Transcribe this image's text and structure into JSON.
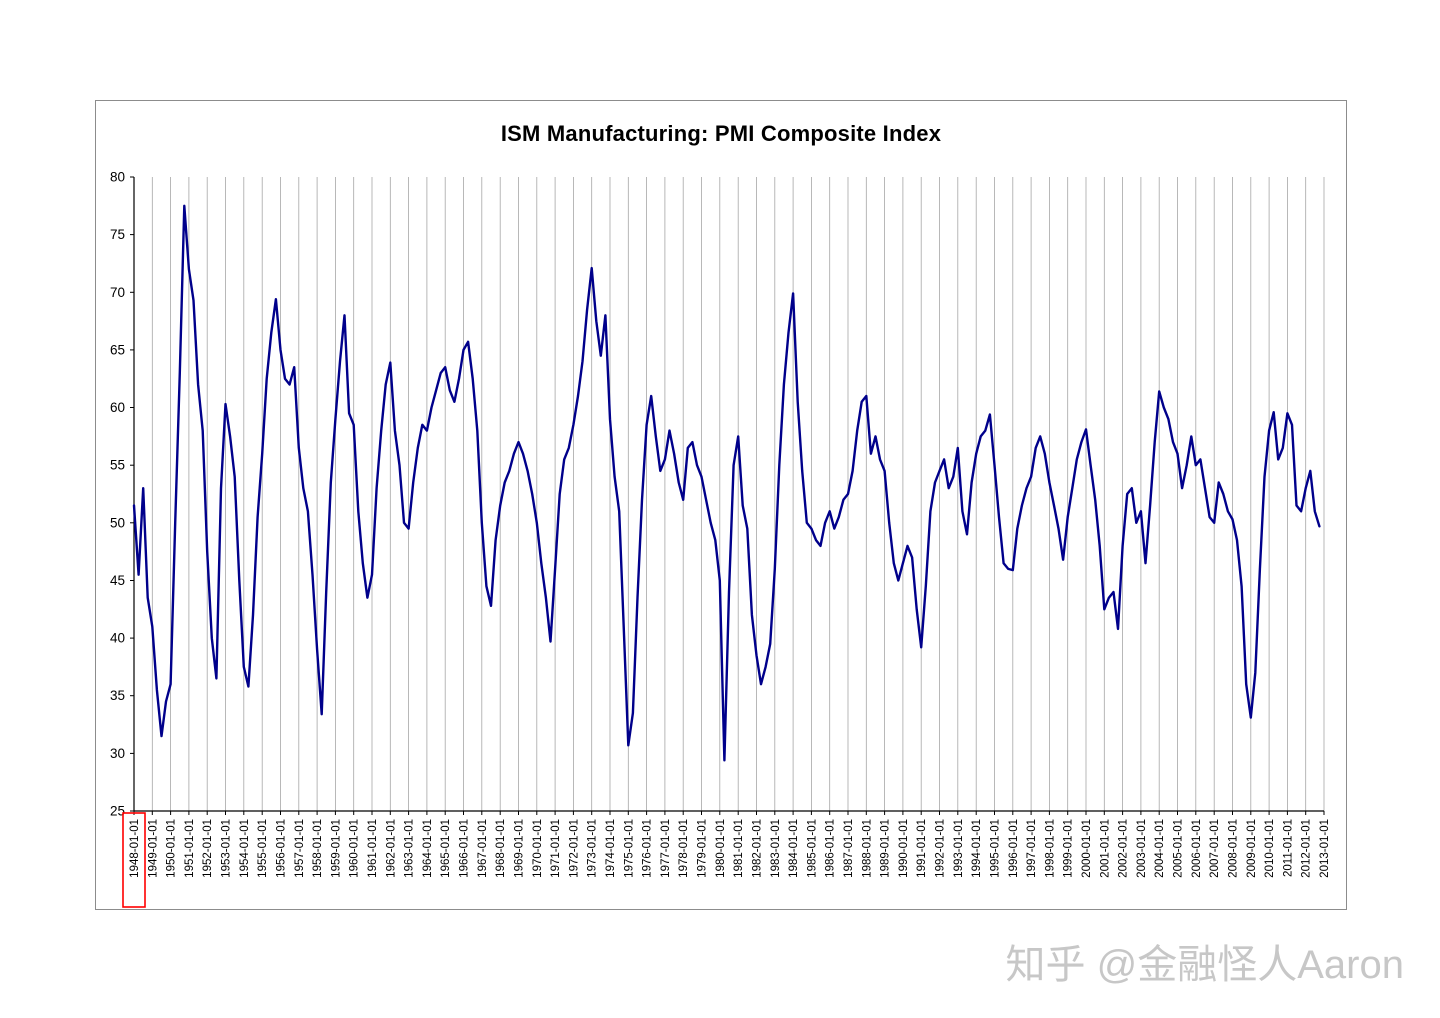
{
  "watermark": {
    "text": "知乎 @金融怪人Aaron"
  },
  "chart_data": {
    "type": "line",
    "title": "ISM Manufacturing: PMI Composite Index",
    "xlabel": "",
    "ylabel": "",
    "ylim": [
      25,
      80
    ],
    "ytick_interval": 5,
    "y_tick_labels": [
      25,
      30,
      35,
      40,
      45,
      50,
      55,
      60,
      65,
      70,
      75,
      80
    ],
    "grid": "vertical-yearly",
    "legend_position": "none",
    "x_start_year": 1948,
    "points_per_year": 4,
    "highlighted_x_label": "1948-01-01",
    "highlight_color": "#FF0000",
    "x_tick_labels": [
      "1948-01-01",
      "1949-01-01",
      "1950-01-01",
      "1951-01-01",
      "1952-01-01",
      "1953-01-01",
      "1954-01-01",
      "1955-01-01",
      "1956-01-01",
      "1957-01-01",
      "1958-01-01",
      "1959-01-01",
      "1960-01-01",
      "1961-01-01",
      "1962-01-01",
      "1963-01-01",
      "1964-01-01",
      "1965-01-01",
      "1966-01-01",
      "1967-01-01",
      "1968-01-01",
      "1969-01-01",
      "1970-01-01",
      "1971-01-01",
      "1972-01-01",
      "1973-01-01",
      "1974-01-01",
      "1975-01-01",
      "1976-01-01",
      "1977-01-01",
      "1978-01-01",
      "1979-01-01",
      "1980-01-01",
      "1981-01-01",
      "1982-01-01",
      "1983-01-01",
      "1984-01-01",
      "1985-01-01",
      "1986-01-01",
      "1987-01-01",
      "1988-01-01",
      "1989-01-01",
      "1990-01-01",
      "1991-01-01",
      "1992-01-01",
      "1993-01-01",
      "1994-01-01",
      "1995-01-01",
      "1996-01-01",
      "1997-01-01",
      "1998-01-01",
      "1999-01-01",
      "2000-01-01",
      "2001-01-01",
      "2002-01-01",
      "2003-01-01",
      "2004-01-01",
      "2005-01-01",
      "2006-01-01",
      "2007-01-01",
      "2008-01-01",
      "2009-01-01",
      "2010-01-01",
      "2011-01-01",
      "2012-01-01",
      "2013-01-01"
    ],
    "series": [
      {
        "name": "PMI Composite Index",
        "color": "#00008B",
        "values": [
          51.5,
          45.5,
          53.0,
          43.5,
          41.0,
          35.5,
          31.5,
          34.5,
          36.0,
          50.0,
          63.0,
          77.5,
          72.0,
          69.3,
          62.0,
          58.0,
          47.5,
          40.0,
          36.5,
          53.0,
          60.3,
          57.5,
          54.0,
          45.0,
          37.5,
          35.8,
          42.0,
          50.5,
          56.0,
          62.5,
          66.5,
          69.4,
          65.0,
          62.5,
          62.0,
          63.5,
          56.5,
          53.0,
          51.0,
          45.5,
          39.0,
          33.4,
          44.0,
          53.5,
          59.0,
          64.0,
          68.0,
          59.5,
          58.5,
          51.0,
          46.5,
          43.5,
          45.5,
          53.0,
          58.0,
          62.0,
          63.9,
          58.0,
          55.0,
          50.0,
          49.5,
          53.5,
          56.5,
          58.5,
          58.0,
          60.0,
          61.5,
          63.0,
          63.5,
          61.5,
          60.5,
          62.5,
          65.0,
          65.7,
          62.5,
          58.0,
          50.0,
          44.5,
          42.8,
          48.5,
          51.5,
          53.5,
          54.5,
          56.0,
          57.0,
          56.0,
          54.5,
          52.5,
          50.0,
          46.5,
          43.5,
          39.7,
          46.0,
          52.5,
          55.5,
          56.5,
          58.5,
          61.0,
          64.0,
          68.5,
          72.1,
          67.5,
          64.5,
          68.0,
          59.0,
          54.0,
          51.0,
          41.0,
          30.7,
          33.5,
          43.5,
          52.0,
          58.5,
          61.0,
          57.5,
          54.5,
          55.5,
          58.0,
          56.0,
          53.5,
          52.0,
          56.5,
          57.0,
          55.0,
          54.0,
          52.0,
          50.0,
          48.5,
          45.0,
          29.4,
          44.0,
          55.0,
          57.5,
          51.5,
          49.5,
          42.0,
          38.5,
          36.0,
          37.5,
          39.5,
          46.0,
          55.0,
          62.0,
          66.5,
          69.9,
          60.5,
          54.5,
          50.0,
          49.5,
          48.5,
          48.0,
          50.0,
          51.0,
          49.5,
          50.5,
          52.0,
          52.5,
          54.5,
          58.0,
          60.5,
          61.0,
          56.0,
          57.5,
          55.5,
          54.5,
          50.0,
          46.5,
          45.0,
          46.5,
          48.0,
          47.0,
          42.5,
          39.2,
          44.5,
          51.0,
          53.5,
          54.5,
          55.5,
          53.0,
          54.0,
          56.5,
          51.0,
          49.0,
          53.5,
          56.0,
          57.5,
          58.0,
          59.4,
          55.0,
          50.5,
          46.5,
          46.0,
          45.9,
          49.5,
          51.5,
          53.0,
          54.0,
          56.5,
          57.5,
          56.0,
          53.5,
          51.5,
          49.5,
          46.8,
          50.5,
          53.0,
          55.5,
          57.0,
          58.1,
          55.0,
          52.0,
          48.0,
          42.5,
          43.5,
          44.0,
          40.8,
          48.0,
          52.5,
          53.0,
          50.0,
          51.0,
          46.5,
          51.5,
          57.0,
          61.4,
          60.0,
          59.0,
          57.0,
          56.0,
          53.0,
          55.0,
          57.5,
          55.0,
          55.5,
          53.0,
          50.5,
          50.0,
          53.5,
          52.5,
          51.0,
          50.3,
          48.5,
          44.5,
          36.0,
          33.1,
          37.0,
          46.0,
          54.0,
          58.0,
          59.6,
          55.5,
          56.5,
          59.5,
          58.5,
          51.5,
          51.0,
          53.0,
          54.5,
          51.0,
          49.7
        ]
      }
    ]
  }
}
